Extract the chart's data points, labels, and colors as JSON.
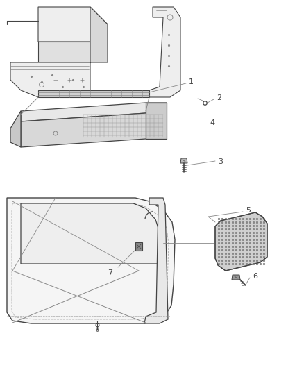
{
  "bg_color": "#ffffff",
  "line_color": "#666666",
  "dark_color": "#444444",
  "thin_color": "#888888",
  "figsize": [
    4.38,
    5.33
  ],
  "dpi": 100
}
